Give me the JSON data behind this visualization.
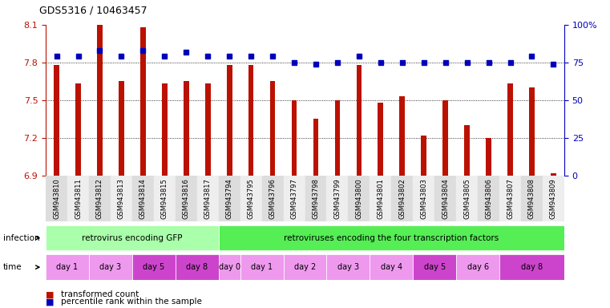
{
  "title": "GDS5316 / 10463457",
  "samples": [
    "GSM943810",
    "GSM943811",
    "GSM943812",
    "GSM943813",
    "GSM943814",
    "GSM943815",
    "GSM943816",
    "GSM943817",
    "GSM943794",
    "GSM943795",
    "GSM943796",
    "GSM943797",
    "GSM943798",
    "GSM943799",
    "GSM943800",
    "GSM943801",
    "GSM943802",
    "GSM943803",
    "GSM943804",
    "GSM943805",
    "GSM943806",
    "GSM943807",
    "GSM943808",
    "GSM943809"
  ],
  "transformed_count": [
    7.78,
    7.63,
    8.1,
    7.65,
    8.08,
    7.63,
    7.65,
    7.63,
    7.78,
    7.78,
    7.65,
    7.5,
    7.35,
    7.5,
    7.78,
    7.48,
    7.53,
    7.22,
    7.5,
    7.3,
    7.2,
    7.63,
    7.6,
    6.92
  ],
  "percentile_rank": [
    79,
    79,
    83,
    79,
    83,
    79,
    82,
    79,
    79,
    79,
    79,
    75,
    74,
    75,
    79,
    75,
    75,
    75,
    75,
    75,
    75,
    75,
    79,
    74
  ],
  "ylim_left": [
    6.9,
    8.1
  ],
  "ylim_right": [
    0,
    100
  ],
  "yticks_left": [
    6.9,
    7.2,
    7.5,
    7.8,
    8.1
  ],
  "yticks_right": [
    0,
    25,
    50,
    75,
    100
  ],
  "bar_color": "#bb1100",
  "dot_color": "#0000bb",
  "infection_groups": [
    {
      "label": "retrovirus encoding GFP",
      "start": 0,
      "end": 8,
      "color": "#aaffaa"
    },
    {
      "label": "retroviruses encoding the four transcription factors",
      "start": 8,
      "end": 24,
      "color": "#55ee55"
    }
  ],
  "time_groups": [
    {
      "label": "day 1",
      "start": 0,
      "end": 2,
      "color": "#ee99ee"
    },
    {
      "label": "day 3",
      "start": 2,
      "end": 4,
      "color": "#ee99ee"
    },
    {
      "label": "day 5",
      "start": 4,
      "end": 6,
      "color": "#cc44cc"
    },
    {
      "label": "day 8",
      "start": 6,
      "end": 8,
      "color": "#cc44cc"
    },
    {
      "label": "day 0",
      "start": 8,
      "end": 9,
      "color": "#ee99ee"
    },
    {
      "label": "day 1",
      "start": 9,
      "end": 11,
      "color": "#ee99ee"
    },
    {
      "label": "day 2",
      "start": 11,
      "end": 13,
      "color": "#ee99ee"
    },
    {
      "label": "day 3",
      "start": 13,
      "end": 15,
      "color": "#ee99ee"
    },
    {
      "label": "day 4",
      "start": 15,
      "end": 17,
      "color": "#ee99ee"
    },
    {
      "label": "day 5",
      "start": 17,
      "end": 19,
      "color": "#cc44cc"
    },
    {
      "label": "day 6",
      "start": 19,
      "end": 21,
      "color": "#ee99ee"
    },
    {
      "label": "day 8",
      "start": 21,
      "end": 24,
      "color": "#cc44cc"
    }
  ],
  "legend_items": [
    {
      "label": "transformed count",
      "color": "#bb1100"
    },
    {
      "label": "percentile rank within the sample",
      "color": "#0000bb"
    }
  ]
}
